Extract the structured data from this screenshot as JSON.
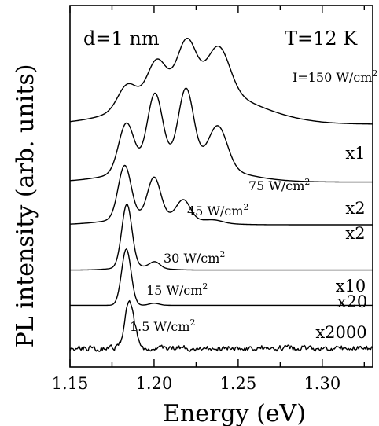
{
  "chart_data": {
    "type": "line",
    "xlabel": "Energy (eV)",
    "ylabel": "PL intensity (arb. units)",
    "xlim": [
      1.15,
      1.33
    ],
    "xticks": [
      "1.15",
      "1.20",
      "1.25",
      "1.30"
    ],
    "xtick_values": [
      1.15,
      1.2,
      1.25,
      1.3
    ],
    "annotations": {
      "thickness": "d=1 nm",
      "temperature": "T=12 K"
    },
    "grid": false,
    "legend": "none",
    "series": [
      {
        "name": "I=150 W/cm2",
        "multiplier": "x1",
        "offset": 5.0,
        "peaks": [
          [
            1.184,
            0.45,
            0.0055
          ],
          [
            1.2015,
            0.7,
            0.0055
          ],
          [
            1.2195,
            0.95,
            0.0055
          ],
          [
            1.2385,
            0.87,
            0.0065
          ]
        ],
        "background": [
          [
            1.224,
            0.75,
            0.032
          ]
        ]
      },
      {
        "name": "75 W/cm2",
        "multiplier": "x2",
        "offset": 3.85,
        "peaks": [
          [
            1.1835,
            0.95,
            0.0045
          ],
          [
            1.2005,
            1.4,
            0.0045
          ],
          [
            1.219,
            1.45,
            0.0045
          ],
          [
            1.238,
            0.82,
            0.0055
          ]
        ],
        "background": [
          [
            1.215,
            0.42,
            0.028
          ]
        ]
      },
      {
        "name": "45 W/cm2",
        "multiplier": "x2",
        "offset": 3.0,
        "peaks": [
          [
            1.1825,
            1.05,
            0.0038
          ],
          [
            1.2,
            0.77,
            0.0038
          ],
          [
            1.2175,
            0.37,
            0.004
          ],
          [
            1.236,
            0.05,
            0.005
          ]
        ],
        "background": [
          [
            1.2,
            0.18,
            0.022
          ]
        ]
      },
      {
        "name": "30 W/cm2",
        "multiplier": "x10",
        "offset": 2.1,
        "peaks": [
          [
            1.1838,
            1.25,
            0.003
          ],
          [
            1.2005,
            0.12,
            0.003
          ]
        ],
        "background": [
          [
            1.19,
            0.07,
            0.012
          ]
        ]
      },
      {
        "name": "15 W/cm2",
        "multiplier": "x20",
        "offset": 1.4,
        "peaks": [
          [
            1.1835,
            1.12,
            0.0028
          ],
          [
            1.2,
            0.04,
            0.003
          ]
        ],
        "background": []
      },
      {
        "name": "1.5 W/cm2",
        "multiplier": "x2000",
        "offset": 0.55,
        "peaks": [
          [
            1.1855,
            0.92,
            0.0028
          ]
        ],
        "background": [],
        "noise": 0.05
      }
    ]
  }
}
